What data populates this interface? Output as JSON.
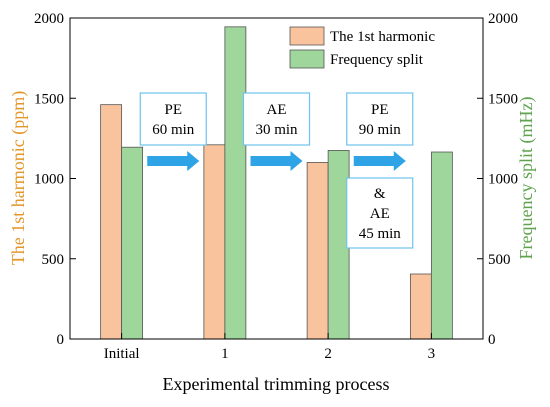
{
  "chart_data": {
    "type": "bar",
    "categories": [
      "Initial",
      "1",
      "2",
      "3"
    ],
    "xlabel": "Experimental trimming process",
    "ylabel_left": "The 1st harmonic (ppm)",
    "ylabel_right": "Frequency split (mHz)",
    "ylim_left": [
      0,
      2000
    ],
    "ylim_right": [
      0,
      2000
    ],
    "yticks_left": [
      "0",
      "500",
      "1000",
      "1500",
      "2000"
    ],
    "yticks_right": [
      "0",
      "500",
      "1000",
      "1500",
      "2000"
    ],
    "grid": false,
    "legend_position": "top-right",
    "series": [
      {
        "name": "The 1st harmonic",
        "axis": "left",
        "color": "#f9c49d",
        "values": [
          1460,
          1210,
          1100,
          405
        ]
      },
      {
        "name": "Frequency split",
        "axis": "right",
        "color": "#9ed69c",
        "values": [
          1195,
          1945,
          1175,
          1165
        ]
      }
    ],
    "annotations": [
      {
        "lines": [
          "PE",
          "60 min"
        ]
      },
      {
        "lines": [
          "AE",
          "30 min"
        ]
      },
      {
        "lines": [
          "PE",
          "90 min"
        ]
      },
      {
        "lines": [
          "&",
          "AE",
          "45 min"
        ]
      }
    ],
    "colors": {
      "left_axis": "#e3962a",
      "right_axis": "#5fa34e",
      "arrow": "#2ea3e6",
      "annotation_border": "#6fc3ec",
      "bar_border": "#555555"
    }
  }
}
